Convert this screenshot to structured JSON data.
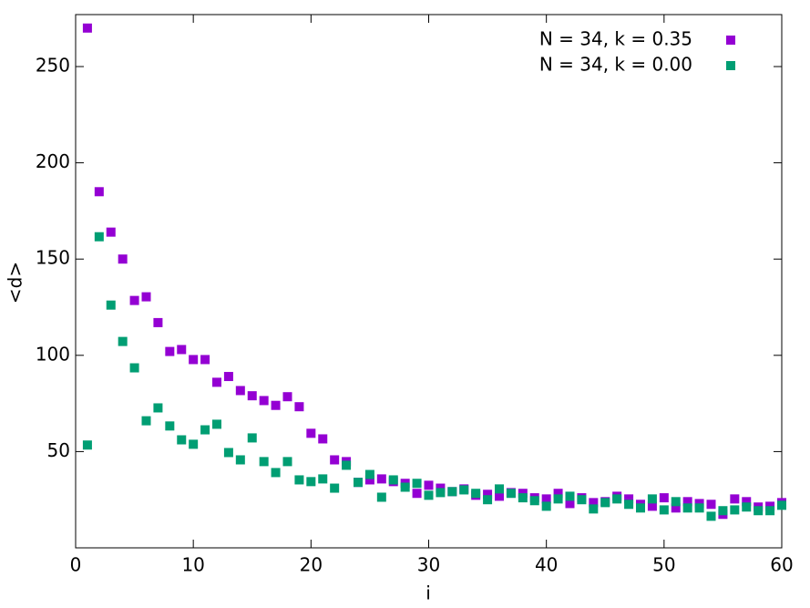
{
  "chart_data": {
    "type": "scatter",
    "xlabel": "i",
    "ylabel": "<d>",
    "x": [
      1,
      2,
      3,
      4,
      5,
      6,
      7,
      8,
      9,
      10,
      11,
      12,
      13,
      14,
      15,
      16,
      17,
      18,
      19,
      20,
      21,
      22,
      23,
      24,
      25,
      26,
      27,
      28,
      29,
      30,
      31,
      32,
      33,
      34,
      35,
      36,
      37,
      38,
      39,
      40,
      41,
      42,
      43,
      44,
      45,
      46,
      47,
      48,
      49,
      50,
      51,
      52,
      53,
      54,
      55,
      56,
      57,
      58,
      59,
      60
    ],
    "series": [
      {
        "name": "N = 34, k = 0.35",
        "color": "#9400d3",
        "values": [
          270,
          185,
          164,
          150,
          128.5,
          130.4,
          117,
          102,
          103,
          97.8,
          97.8,
          86,
          89,
          81.7,
          79,
          76.5,
          74,
          78.5,
          73.3,
          59.5,
          56.6,
          45.7,
          44.8,
          34,
          35.3,
          35.8,
          34.4,
          33.5,
          28.3,
          32.5,
          31,
          29.2,
          30.6,
          27.3,
          27.8,
          26.8,
          28.7,
          28.3,
          26,
          25.4,
          28.3,
          23,
          26,
          23.5,
          24,
          26.8,
          25.4,
          22.6,
          21.6,
          26,
          20.7,
          24,
          23,
          22.6,
          17.4,
          25.4,
          24,
          21.2,
          21.6,
          23.5
        ]
      },
      {
        "name": "N = 34, k = 0.00",
        "color": "#009e73",
        "values": [
          53.4,
          161.6,
          126.1,
          107.2,
          93.5,
          66,
          72.7,
          63.3,
          56.1,
          53.8,
          61.3,
          64.2,
          49.5,
          45.7,
          57.1,
          44.8,
          39.1,
          44.8,
          35.3,
          34.4,
          35.8,
          31,
          42.9,
          34,
          38.1,
          26.3,
          35.3,
          31.5,
          33.5,
          27.3,
          28.7,
          29.2,
          30.1,
          28.3,
          25,
          30.6,
          28.3,
          26,
          24.5,
          21.6,
          25.4,
          26.8,
          25,
          20.2,
          23.5,
          25.4,
          22.6,
          20.7,
          25.4,
          19.7,
          24,
          20.7,
          20.7,
          16.4,
          19.3,
          19.7,
          21.2,
          19.3,
          19.3,
          22.1
        ]
      }
    ],
    "xlim": [
      0,
      60
    ],
    "xticks": [
      0,
      10,
      20,
      30,
      40,
      50,
      60
    ],
    "ylim": [
      0,
      277
    ],
    "yticks": [
      50,
      100,
      150,
      200,
      250
    ],
    "grid": false,
    "legend": "top-right"
  }
}
